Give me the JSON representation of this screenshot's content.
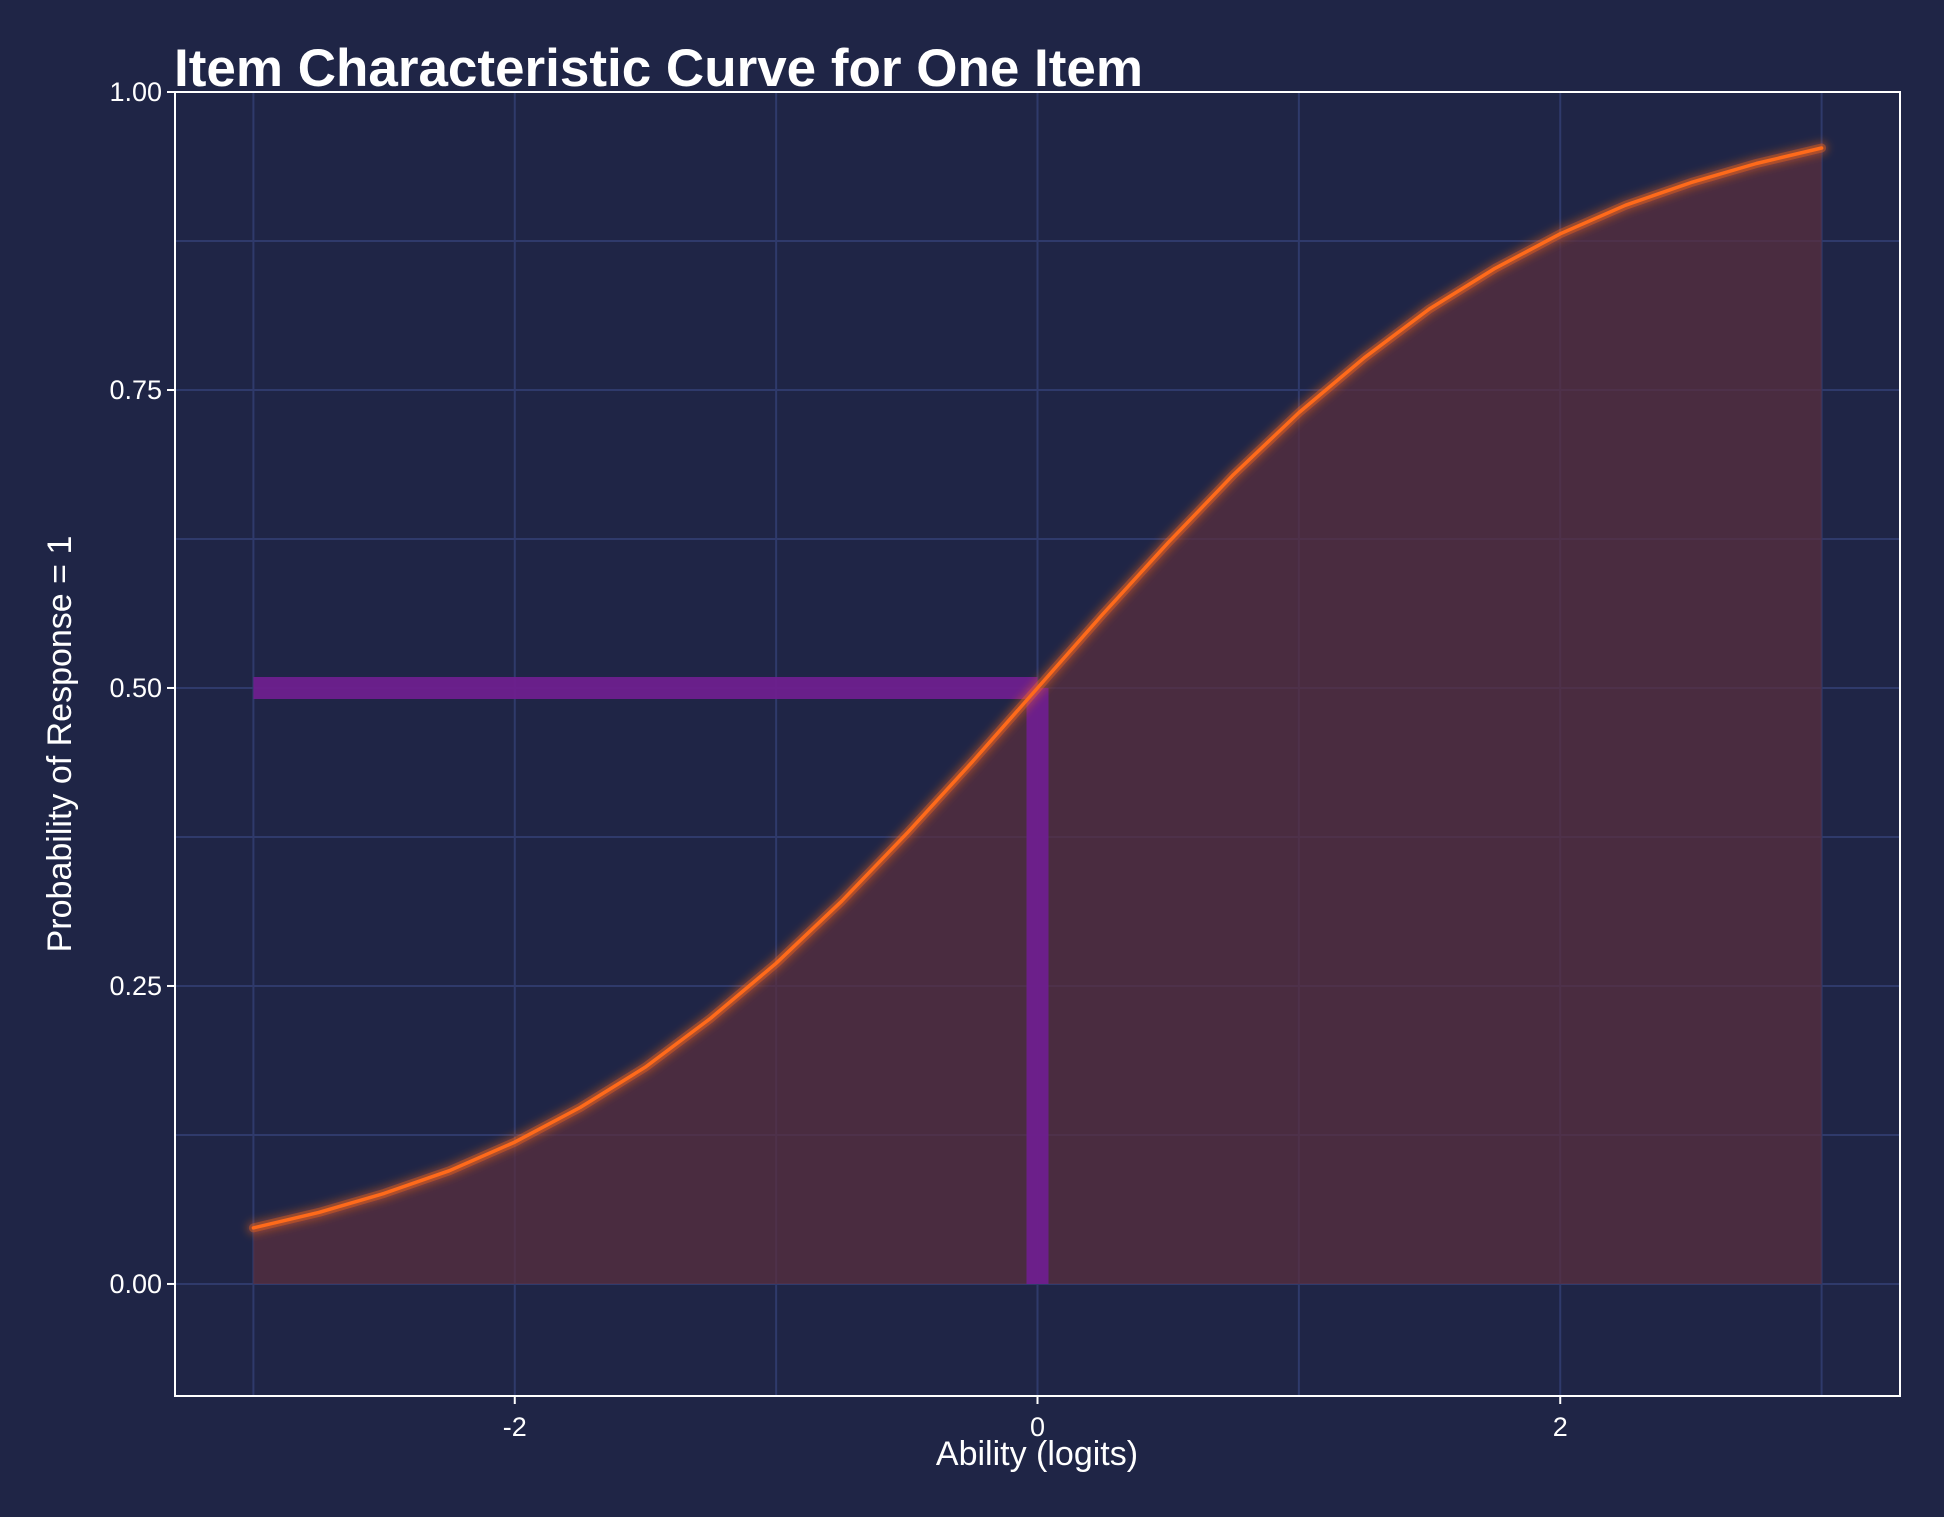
{
  "chart_data": {
    "type": "area",
    "title": "Item Characteristic Curve for One Item",
    "xlabel": "Ability (logits)",
    "ylabel": "Probability of Response = 1",
    "xlim": [
      -3.3,
      3.3
    ],
    "ylim": [
      -0.094,
      1.0
    ],
    "x_ticks": [
      -2,
      0,
      2
    ],
    "x_tick_labels": [
      "-2",
      "0",
      "2"
    ],
    "y_ticks": [
      0,
      0.25,
      0.5,
      0.75,
      1.0
    ],
    "y_tick_labels": [
      "0.00",
      "0.25",
      "0.50",
      "0.75",
      "1.00"
    ],
    "x_minor_gridlines": [
      -3,
      -1,
      1,
      3
    ],
    "y_minor_gridlines": [
      0.125,
      0.375,
      0.625,
      0.875
    ],
    "grid": true,
    "series": [
      {
        "x": [
          -3.0,
          -2.75,
          -2.5,
          -2.25,
          -2.0,
          -1.75,
          -1.5,
          -1.25,
          -1.0,
          -0.75,
          -0.5,
          -0.25,
          0.0,
          0.25,
          0.5,
          0.75,
          1.0,
          1.25,
          1.5,
          1.75,
          2.0,
          2.25,
          2.5,
          2.75,
          3.0
        ],
        "y": [
          0.047,
          0.06,
          0.076,
          0.095,
          0.119,
          0.148,
          0.182,
          0.223,
          0.269,
          0.321,
          0.378,
          0.438,
          0.5,
          0.562,
          0.622,
          0.679,
          0.731,
          0.777,
          0.818,
          0.852,
          0.881,
          0.905,
          0.924,
          0.94,
          0.953
        ],
        "fill_to_zero": true
      }
    ],
    "reference_lines": [
      {
        "orientation": "horizontal",
        "y": 0.5,
        "x_from": -3.0,
        "x_to": 0.0
      },
      {
        "orientation": "vertical",
        "x": 0.0,
        "y_from": 0.0,
        "y_to": 0.5
      }
    ],
    "colors": {
      "background": "#1f2546",
      "grid": "#2f3a6b",
      "axis": "#ffffff",
      "curve": "#ff6a1a",
      "curve_glow": "#ff6a1a",
      "area_fill": "#5a2f3f",
      "reference": "#6e1f8e",
      "text": "#ffffff"
    }
  }
}
